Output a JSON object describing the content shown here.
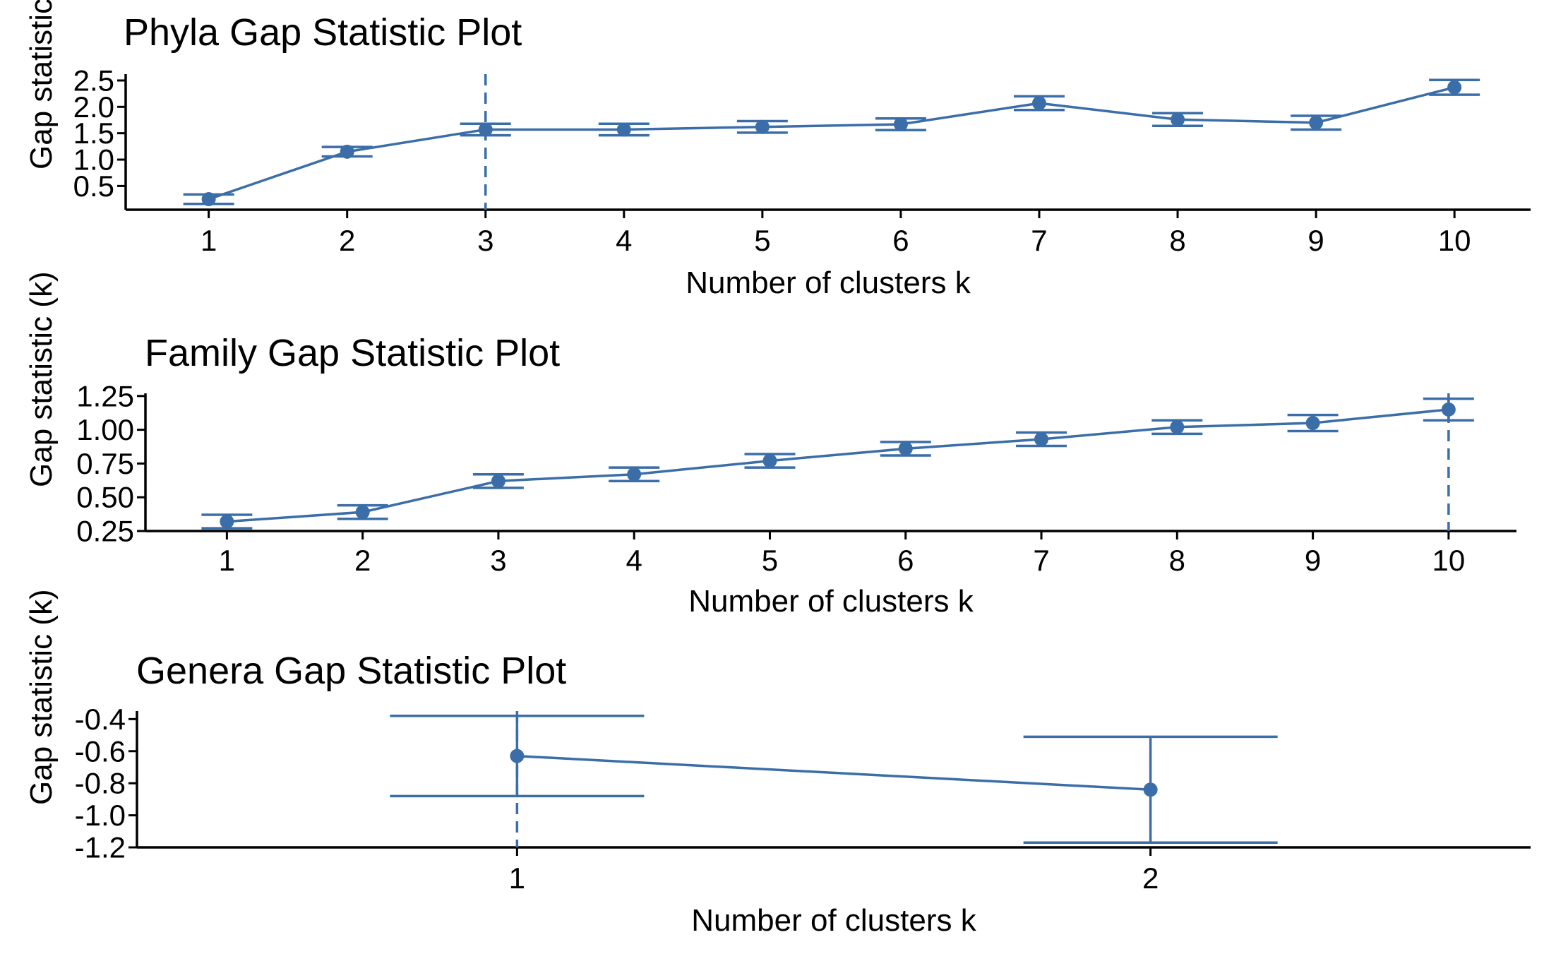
{
  "style": {
    "series_color": "#3b6ea8",
    "axis_color": "#000000"
  },
  "chart_data": [
    {
      "type": "line",
      "title": "Phyla Gap Statistic Plot",
      "xlabel": "Number of clusters k",
      "ylabel": "Gap statistic (k)",
      "x": [
        1,
        2,
        3,
        4,
        5,
        6,
        7,
        8,
        9,
        10
      ],
      "x_tick_labels": [
        "1",
        "2",
        "3",
        "4",
        "5",
        "6",
        "7",
        "8",
        "9",
        "10"
      ],
      "values": [
        0.25,
        1.15,
        1.57,
        1.57,
        1.62,
        1.67,
        2.07,
        1.76,
        1.7,
        2.37
      ],
      "error": [
        0.09,
        0.09,
        0.11,
        0.11,
        0.11,
        0.11,
        0.13,
        0.12,
        0.13,
        0.14
      ],
      "y_ticks": [
        0.5,
        1.0,
        1.5,
        2.0,
        2.5
      ],
      "y_tick_labels": [
        "0.5",
        "1.0",
        "1.5",
        "2.0",
        "2.5"
      ],
      "ylim": [
        0.05,
        2.62
      ],
      "xlim": [
        0.4,
        10.55
      ],
      "optimal_k": 3,
      "grid": false,
      "legend": "none"
    },
    {
      "type": "line",
      "title": "Family Gap Statistic Plot",
      "xlabel": "Number of clusters k",
      "ylabel": "Gap statistic (k)",
      "x": [
        1,
        2,
        3,
        4,
        5,
        6,
        7,
        8,
        9,
        10
      ],
      "x_tick_labels": [
        "1",
        "2",
        "3",
        "4",
        "5",
        "6",
        "7",
        "8",
        "9",
        "10"
      ],
      "values": [
        0.32,
        0.39,
        0.62,
        0.67,
        0.77,
        0.86,
        0.93,
        1.02,
        1.05,
        1.15
      ],
      "error": [
        0.05,
        0.05,
        0.05,
        0.05,
        0.05,
        0.05,
        0.05,
        0.05,
        0.06,
        0.08
      ],
      "y_ticks": [
        0.25,
        0.5,
        0.75,
        1.0,
        1.25
      ],
      "y_tick_labels": [
        "0.25",
        "0.50",
        "0.75",
        "1.00",
        "1.25"
      ],
      "ylim": [
        0.25,
        1.27
      ],
      "xlim": [
        0.4,
        10.5
      ],
      "optimal_k": 10,
      "grid": false,
      "legend": "none"
    },
    {
      "type": "line",
      "title": "Genera Gap Statistic Plot",
      "xlabel": "Number of clusters k",
      "ylabel": "Gap statistic (k)",
      "x": [
        1,
        2
      ],
      "x_tick_labels": [
        "1",
        "2"
      ],
      "values": [
        -0.63,
        -0.84
      ],
      "error": [
        0.25,
        0.33
      ],
      "y_ticks": [
        -1.2,
        -1.0,
        -0.8,
        -0.6,
        -0.4
      ],
      "y_tick_labels": [
        "-1.2",
        "-1.0",
        "-0.8",
        "-0.6",
        "-0.4"
      ],
      "ylim": [
        -1.2,
        -0.35
      ],
      "xlim": [
        0.4,
        2.6
      ],
      "optimal_k": 1,
      "grid": false,
      "legend": "none"
    }
  ]
}
